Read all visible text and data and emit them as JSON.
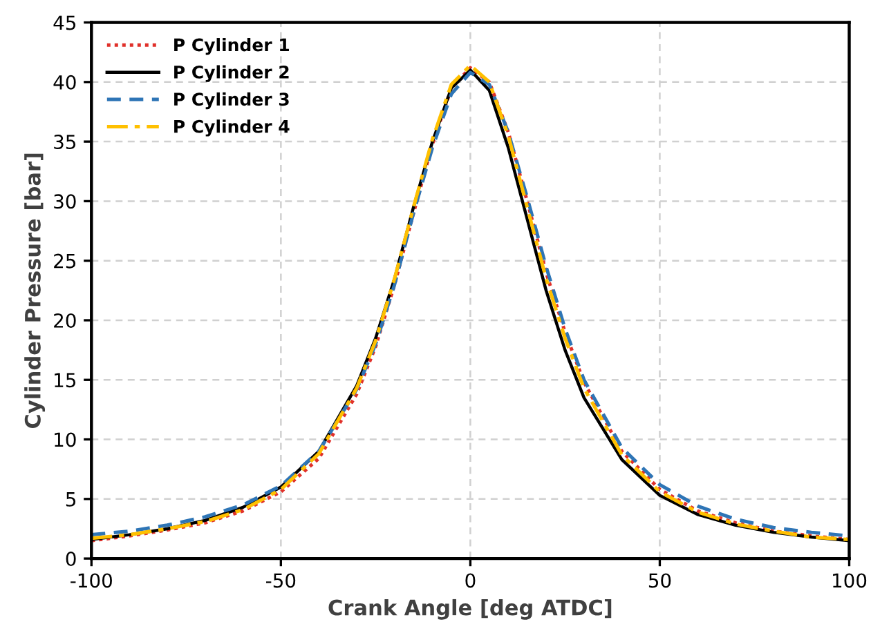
{
  "chart_data": {
    "type": "line",
    "xlabel": "Crank Angle [deg ATDC]",
    "ylabel": "Cylinder Pressure [bar]",
    "x": [
      -100,
      -90,
      -80,
      -70,
      -60,
      -50,
      -40,
      -30,
      -25,
      -20,
      -15,
      -10,
      -5,
      0,
      5,
      10,
      15,
      20,
      25,
      30,
      40,
      50,
      60,
      70,
      80,
      90,
      100
    ],
    "xlim": [
      -100,
      100
    ],
    "xticks": [
      -100,
      -50,
      0,
      50,
      100
    ],
    "ylim": [
      0,
      45
    ],
    "yticks": [
      0,
      5,
      10,
      15,
      20,
      25,
      30,
      35,
      40,
      45
    ],
    "grid": true,
    "legend": "top left",
    "marker": "none",
    "series": [
      {
        "name": "P Cylinder 1",
        "color": "#e0302a",
        "line_style": "dotted",
        "values": [
          1.5,
          1.9,
          2.4,
          3.0,
          4.0,
          5.6,
          8.4,
          13.8,
          17.8,
          23,
          29,
          34.8,
          39.5,
          41.2,
          40,
          35.8,
          30,
          24,
          19,
          14.8,
          9,
          5.8,
          4.0,
          3.0,
          2.3,
          1.9,
          1.6
        ]
      },
      {
        "name": "P Cylinder 2",
        "color": "#000000",
        "line_style": "solid",
        "values": [
          1.6,
          2.0,
          2.5,
          3.2,
          4.3,
          6.0,
          9.0,
          14.5,
          18.5,
          23.5,
          29.5,
          35,
          39.5,
          41.0,
          39.3,
          34.5,
          28.5,
          22.5,
          17.5,
          13.5,
          8.3,
          5.3,
          3.7,
          2.8,
          2.2,
          1.8,
          1.5
        ]
      },
      {
        "name": "P Cylinder 3",
        "color": "#2e75b6",
        "line_style": "dashed",
        "values": [
          2.0,
          2.3,
          2.8,
          3.5,
          4.5,
          6.1,
          9.0,
          14.2,
          18,
          23,
          29,
          34.5,
          39,
          40.8,
          39.8,
          35.8,
          30.3,
          24.5,
          19.3,
          15,
          9.3,
          6.2,
          4.4,
          3.3,
          2.6,
          2.2,
          1.9
        ]
      },
      {
        "name": "P Cylinder 4",
        "color": "#ffc000",
        "line_style": "dashdot",
        "values": [
          1.7,
          2.0,
          2.5,
          3.1,
          4.1,
          5.8,
          8.8,
          14.3,
          18.3,
          23.5,
          29.5,
          35.2,
          39.8,
          41.4,
          40,
          35.5,
          29.5,
          23.5,
          18.5,
          14.3,
          8.7,
          5.6,
          3.9,
          2.9,
          2.3,
          1.8,
          1.6
        ]
      }
    ]
  }
}
